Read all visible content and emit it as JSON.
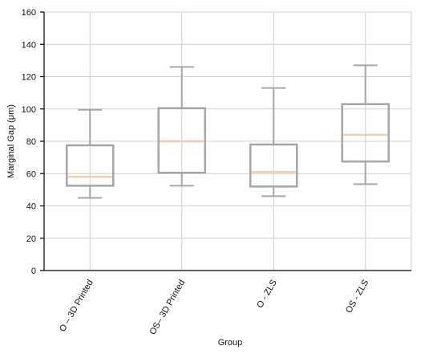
{
  "chart_data": {
    "type": "box",
    "xlabel": "Group",
    "ylabel": "Marginal Gap (μm)",
    "ylim": [
      0,
      160
    ],
    "yticks": [
      0,
      20,
      40,
      60,
      80,
      100,
      120,
      140,
      160
    ],
    "grid": true,
    "categories": [
      "O – 3D Printed",
      "OS– 3D Printed",
      "O - ZLS",
      "OS - ZLS"
    ],
    "boxes": [
      {
        "category": "O – 3D Printed",
        "min": 45,
        "q1": 52.5,
        "median": 58,
        "q3": 77.5,
        "max": 99.5
      },
      {
        "category": "OS– 3D Printed",
        "min": 52.5,
        "q1": 60.5,
        "median": 80,
        "q3": 100.5,
        "max": 126
      },
      {
        "category": "O - ZLS",
        "min": 46,
        "q1": 52,
        "median": 61,
        "q3": 78,
        "max": 113
      },
      {
        "category": "OS - ZLS",
        "min": 53.5,
        "q1": 67.5,
        "median": 84,
        "q3": 103,
        "max": 127
      }
    ],
    "colors": {
      "box": "#a6a6a6",
      "whisker": "#a6a6a6",
      "median": "#f8c9a0",
      "grid": "#cfcfcf",
      "axis": "#000000"
    }
  }
}
